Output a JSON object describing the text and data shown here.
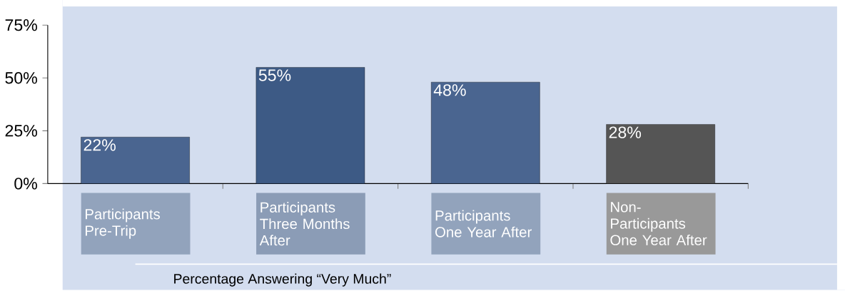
{
  "chart_data": {
    "type": "bar",
    "xlabel": "Percentage Answering “Very Much”",
    "categories": [
      "Participants Pre-Trip",
      "Participants Three Months After",
      "Participants One Year After",
      "Non-Participants One Year After"
    ],
    "values": [
      22,
      55,
      48,
      28
    ],
    "value_labels": [
      "22%",
      "55%",
      "48%",
      "28%"
    ],
    "colors": [
      "#4a6590",
      "#3d5a85",
      "#4a6590",
      "#555555"
    ],
    "ylim": [
      0,
      75
    ],
    "yticks": [
      {
        "value": 0,
        "label": "0%"
      },
      {
        "value": 25,
        "label": "25%"
      },
      {
        "value": 50,
        "label": "50%"
      },
      {
        "value": 75,
        "label": "75%"
      }
    ],
    "grid": false
  }
}
